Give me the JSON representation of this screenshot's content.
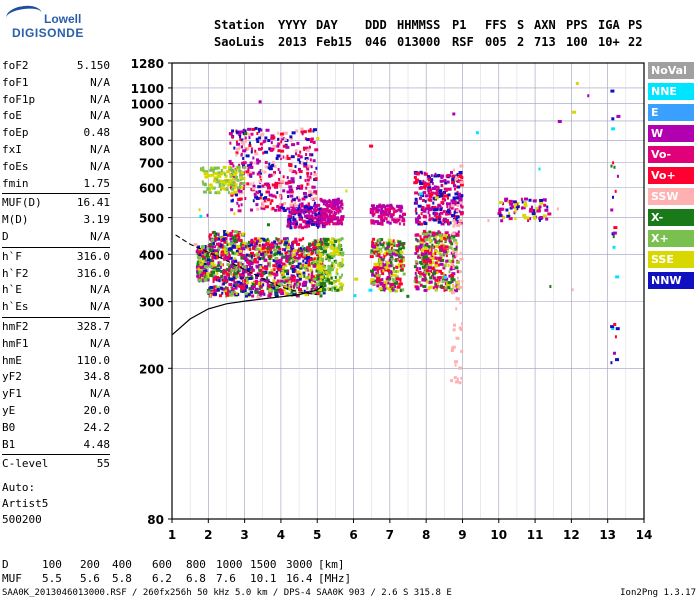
{
  "logo": {
    "line1": "Lowell",
    "line2": "DIGISONDE"
  },
  "header": {
    "row1": [
      "Station",
      "YYYY",
      "DAY",
      "DDD",
      "HHMMSS",
      "P1",
      "FFS",
      "S",
      "AXN",
      "PPS",
      "IGA",
      "PS"
    ],
    "row2": [
      "SaoLuis",
      "2013",
      "Feb15",
      "046",
      "013000",
      "RSF",
      "005",
      "2",
      "713",
      "100",
      "10+",
      "22"
    ]
  },
  "params": {
    "group1": [
      {
        "label": "foF2",
        "value": "5.150"
      },
      {
        "label": "foF1",
        "value": "N/A"
      },
      {
        "label": "foF1p",
        "value": "N/A"
      },
      {
        "label": "foE",
        "value": "N/A"
      },
      {
        "label": "foEp",
        "value": "0.48"
      },
      {
        "label": "fxI",
        "value": "N/A"
      },
      {
        "label": "foEs",
        "value": "N/A"
      },
      {
        "label": "fmin",
        "value": "1.75"
      }
    ],
    "group2": [
      {
        "label": "MUF(D)",
        "value": "16.41"
      },
      {
        "label": "M(D)",
        "value": "3.19"
      },
      {
        "label": "D",
        "value": "N/A"
      }
    ],
    "group3": [
      {
        "label": "h`F",
        "value": "316.0"
      },
      {
        "label": "h`F2",
        "value": "316.0"
      },
      {
        "label": "h`E",
        "value": "N/A"
      },
      {
        "label": "h`Es",
        "value": "N/A"
      }
    ],
    "group4": [
      {
        "label": "hmF2",
        "value": "328.7"
      },
      {
        "label": "hmF1",
        "value": "N/A"
      },
      {
        "label": "hmE",
        "value": "110.0"
      },
      {
        "label": "yF2",
        "value": "34.8"
      },
      {
        "label": "yF1",
        "value": "N/A"
      },
      {
        "label": "yE",
        "value": "20.0"
      },
      {
        "label": "B0",
        "value": "24.2"
      },
      {
        "label": "B1",
        "value": "4.48"
      }
    ],
    "group5": [
      {
        "label": "C-level",
        "value": "55"
      }
    ]
  },
  "auto": {
    "line1": "Auto:",
    "line2": "Artist5",
    "line3": "500200"
  },
  "legend": [
    {
      "label": "NoVal",
      "color": "#a0a0a0"
    },
    {
      "label": "NNE",
      "color": "#00e5ff"
    },
    {
      "label": "E",
      "color": "#3aa0ff"
    },
    {
      "label": "W",
      "color": "#b000b0"
    },
    {
      "label": "Vo-",
      "color": "#e0007a"
    },
    {
      "label": "Vo+",
      "color": "#ff0030"
    },
    {
      "label": "SSW",
      "color": "#ffb0b0"
    },
    {
      "label": "X-",
      "color": "#1a7a1a"
    },
    {
      "label": "X+",
      "color": "#7ac050"
    },
    {
      "label": "SSE",
      "color": "#d8d800"
    },
    {
      "label": "NNW",
      "color": "#1010c0"
    }
  ],
  "mufTable": {
    "d_label": "D",
    "d_values": [
      "100",
      "200",
      "400",
      "600",
      "800",
      "1000",
      "1500",
      "3000"
    ],
    "d_unit": "[km]",
    "muf_label": "MUF",
    "muf_values": [
      "5.5",
      "5.6",
      "5.8",
      "6.2",
      "6.8",
      "7.6",
      "10.1",
      "16.4"
    ],
    "muf_unit": "[MHz]"
  },
  "footer": {
    "left": "SAA0K_2013046013000.RSF / 260fx256h 50 kHz 5.0 km / DPS-4 SAA0K 903 / 2.6 S 315.8 E",
    "right": "Ion2Png 1.3.17"
  },
  "chart_data": {
    "type": "scatter",
    "x_range": [
      1,
      14
    ],
    "x_ticks": [
      "1",
      "2",
      "3",
      "4",
      "5",
      "6",
      "7",
      "8",
      "9",
      "10",
      "11",
      "12",
      "13",
      "14"
    ],
    "y_log": true,
    "y_range": [
      80,
      1280
    ],
    "y_ticks": [
      "80",
      "200",
      "300",
      "400",
      "500",
      "600",
      "700",
      "800",
      "900",
      "1000",
      "1100",
      "1280"
    ],
    "grid": true,
    "legend_position": "right",
    "solid_profile": {
      "x": [
        1.0,
        1.5,
        2.0,
        2.5,
        3.0,
        3.5,
        4.0,
        4.5,
        5.0,
        5.15
      ],
      "y": [
        245,
        270,
        287,
        296,
        301,
        305,
        309,
        313,
        322,
        331
      ]
    },
    "dashed_trace": {
      "x": [
        1.1,
        1.5,
        2.0,
        2.5,
        3.0,
        3.5,
        4.0,
        4.5,
        5.0
      ],
      "y": [
        450,
        425,
        405,
        385,
        365,
        345,
        328,
        318,
        313
      ]
    },
    "trace_clusters": [
      {
        "x": [
          1.7,
          2.0
        ],
        "y": [
          340,
          420
        ],
        "colors": [
          "Vo+",
          "Vo-",
          "W",
          "X-",
          "SSE",
          "NNW",
          "X+"
        ],
        "density": 180
      },
      {
        "x": [
          2.0,
          3.0
        ],
        "y": [
          310,
          460
        ],
        "colors": [
          "Vo+",
          "Vo-",
          "W",
          "X-",
          "SSE",
          "X+",
          "NNW"
        ],
        "density": 420
      },
      {
        "x": [
          3.0,
          5.2
        ],
        "y": [
          310,
          440
        ],
        "colors": [
          "Vo+",
          "Vo-",
          "W",
          "SSE",
          "X-",
          "X+",
          "NNW"
        ],
        "density": 650
      },
      {
        "x": [
          4.2,
          5.2
        ],
        "y": [
          470,
          540
        ],
        "colors": [
          "W",
          "Vo-",
          "NNW"
        ],
        "density": 160
      },
      {
        "x": [
          2.6,
          5.0
        ],
        "y": [
          520,
          860
        ],
        "colors": [
          "W",
          "Vo-",
          "Vo+",
          "SSW",
          "NNW"
        ],
        "density": 420
      },
      {
        "x": [
          1.8,
          3.0
        ],
        "y": [
          580,
          680
        ],
        "colors": [
          "SSE",
          "X+"
        ],
        "density": 120
      },
      {
        "x": [
          5.0,
          5.7
        ],
        "y": [
          320,
          440
        ],
        "colors": [
          "SSE",
          "X+",
          "X-"
        ],
        "density": 200
      },
      {
        "x": [
          5.1,
          5.7
        ],
        "y": [
          480,
          560
        ],
        "colors": [
          "W",
          "Vo-"
        ],
        "density": 120
      },
      {
        "x": [
          6.5,
          7.4
        ],
        "y": [
          320,
          440
        ],
        "colors": [
          "SSE",
          "Vo+",
          "X-",
          "X+",
          "W"
        ],
        "density": 260
      },
      {
        "x": [
          6.5,
          7.4
        ],
        "y": [
          480,
          540
        ],
        "colors": [
          "W",
          "Vo-"
        ],
        "density": 100
      },
      {
        "x": [
          7.7,
          8.9
        ],
        "y": [
          320,
          460
        ],
        "colors": [
          "SSE",
          "Vo+",
          "X-",
          "X+",
          "W",
          "Vo-"
        ],
        "density": 360
      },
      {
        "x": [
          7.7,
          9.0
        ],
        "y": [
          480,
          660
        ],
        "colors": [
          "W",
          "Vo-",
          "Vo+",
          "NNW"
        ],
        "density": 260
      },
      {
        "x": [
          8.7,
          9.0
        ],
        "y": [
          180,
          700
        ],
        "colors": [
          "SSW"
        ],
        "density": 60
      },
      {
        "x": [
          10.0,
          11.4
        ],
        "y": [
          490,
          560
        ],
        "colors": [
          "W",
          "Vo-",
          "SSE",
          "NNW"
        ],
        "density": 80
      },
      {
        "x": [
          13.1,
          13.3
        ],
        "y": [
          180,
          1110
        ],
        "colors": [
          "W",
          "Vo+",
          "X-",
          "NNW",
          "NNE"
        ],
        "density": 25
      },
      {
        "x": [
          1.5,
          13.0
        ],
        "y": [
          300,
          1200
        ],
        "colors": [
          "W",
          "Vo+",
          "SSE",
          "X-",
          "NNE",
          "SSW"
        ],
        "density": 40
      }
    ]
  }
}
